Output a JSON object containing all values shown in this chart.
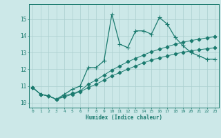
{
  "xlabel": "Humidex (Indice chaleur)",
  "bg_color": "#cce8e8",
  "line_color": "#1a7a6e",
  "grid_color": "#aacfcf",
  "xlim": [
    -0.5,
    23.5
  ],
  "ylim": [
    9.7,
    15.9
  ],
  "yticks": [
    10,
    11,
    12,
    13,
    14,
    15
  ],
  "xticks": [
    0,
    1,
    2,
    3,
    4,
    5,
    6,
    7,
    8,
    9,
    10,
    11,
    12,
    13,
    14,
    15,
    16,
    17,
    18,
    19,
    20,
    21,
    22,
    23
  ],
  "series": [
    [
      10.9,
      10.5,
      10.4,
      10.2,
      10.5,
      10.8,
      11.0,
      12.1,
      12.1,
      12.5,
      15.3,
      13.5,
      13.3,
      14.3,
      14.3,
      14.1,
      15.1,
      14.7,
      13.9,
      13.4,
      13.0,
      12.8,
      12.6,
      12.6
    ],
    [
      10.9,
      10.5,
      10.4,
      10.2,
      10.4,
      10.55,
      10.7,
      11.1,
      11.35,
      11.65,
      11.95,
      12.2,
      12.45,
      12.65,
      12.85,
      13.05,
      13.2,
      13.35,
      13.5,
      13.62,
      13.72,
      13.8,
      13.88,
      13.95
    ],
    [
      10.9,
      10.5,
      10.4,
      10.2,
      10.35,
      10.5,
      10.65,
      10.9,
      11.1,
      11.35,
      11.6,
      11.8,
      12.0,
      12.2,
      12.38,
      12.55,
      12.68,
      12.8,
      12.92,
      13.02,
      13.1,
      13.17,
      13.23,
      13.28
    ]
  ],
  "markers": [
    "+",
    "D",
    "D"
  ],
  "markersizes": [
    4,
    2.5,
    2.5
  ],
  "linewidths": [
    0.9,
    0.7,
    0.7
  ]
}
